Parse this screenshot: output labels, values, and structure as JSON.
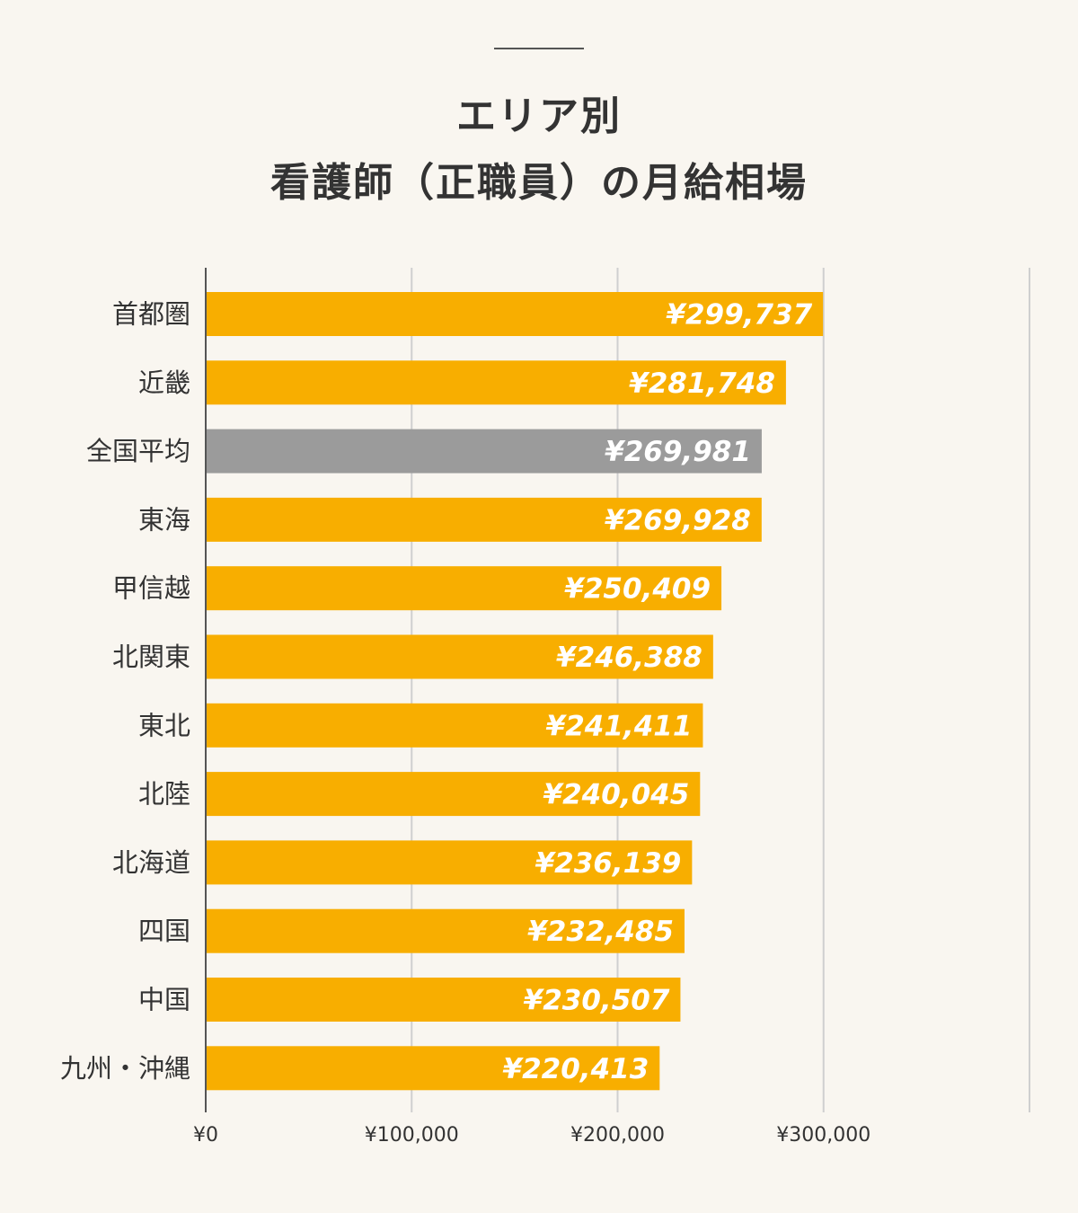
{
  "title": {
    "line1": "エリア別",
    "line2": "看護師（正職員）の月給相場"
  },
  "chart_data": {
    "type": "bar",
    "orientation": "horizontal",
    "categories": [
      "首都圏",
      "近畿",
      "全国平均",
      "東海",
      "甲信越",
      "北関東",
      "東北",
      "北陸",
      "北海道",
      "四国",
      "中国",
      "九州・沖縄"
    ],
    "values": [
      299737,
      281748,
      269981,
      269928,
      250409,
      246388,
      241411,
      240045,
      236139,
      232485,
      230507,
      220413
    ],
    "value_labels": [
      "¥299,737",
      "¥281,748",
      "¥269,981",
      "¥269,928",
      "¥250,409",
      "¥246,388",
      "¥241,411",
      "¥240,045",
      "¥236,139",
      "¥232,485",
      "¥230,507",
      "¥220,413"
    ],
    "highlight_index": 2,
    "xlim": [
      0,
      400000
    ],
    "ticks": [
      0,
      100000,
      200000,
      300000,
      400000
    ],
    "tick_labels": [
      "¥0",
      "¥100,000",
      "¥200,000",
      "¥300,000",
      ""
    ],
    "grid": true,
    "colors": {
      "bar": "#f8ae00",
      "highlight": "#9b9b9b",
      "grid": "#cfcfcf",
      "axis": "#555555",
      "value_text": "#ffffff"
    }
  }
}
